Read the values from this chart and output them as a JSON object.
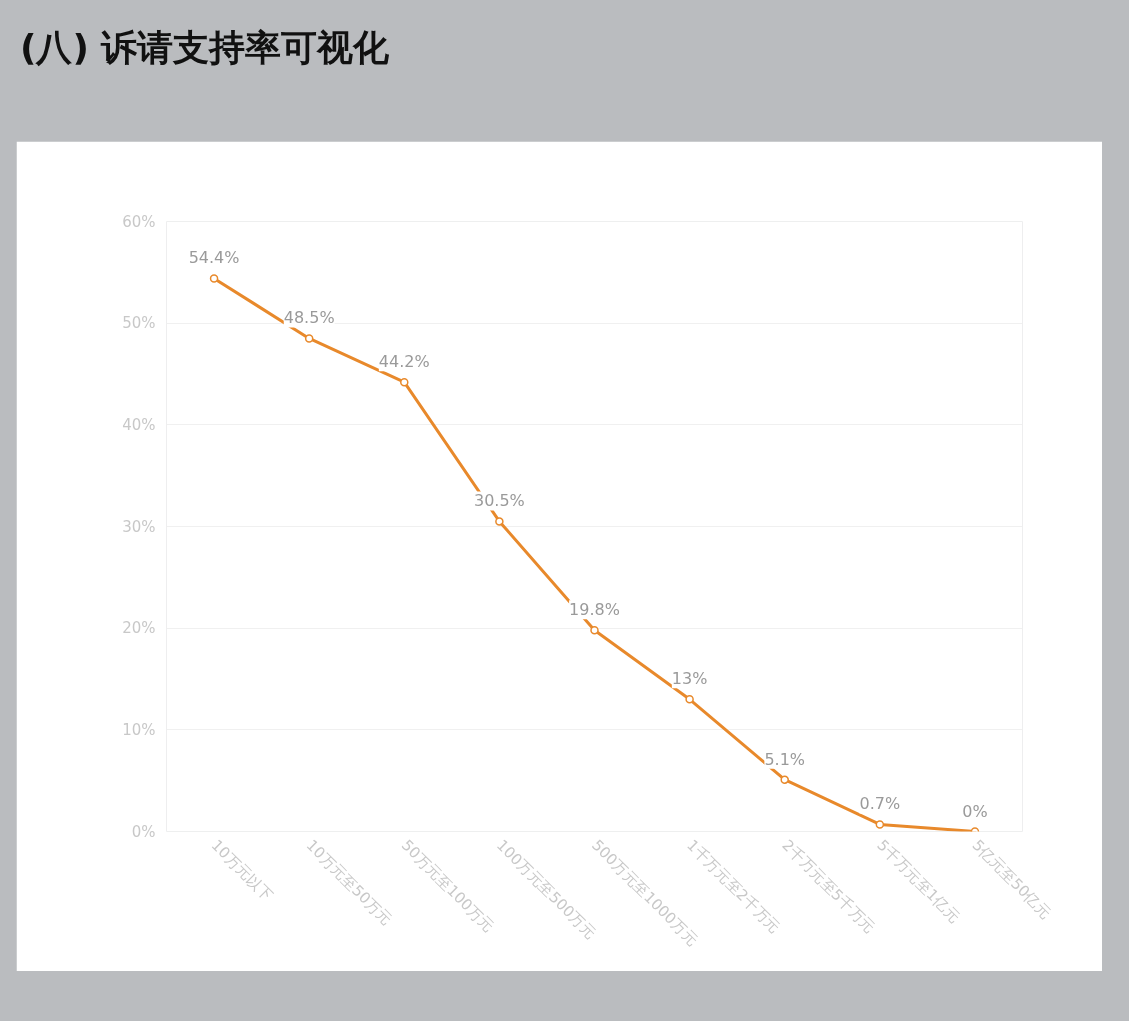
{
  "chart_data": {
    "type": "line",
    "title": "(八) 诉请支持率可视化",
    "categories": [
      "10万元以下",
      "10万元至50万元",
      "50万元至100万元",
      "100万元至500万元",
      "500万元至1000万元",
      "1千万元至2千万元",
      "2千万元至5千万元",
      "5千万元至1亿元",
      "5亿元至50亿元"
    ],
    "series": [
      {
        "color": "#e8892b",
        "values": [
          54.4,
          48.5,
          44.2,
          30.5,
          19.8,
          13,
          5.1,
          0.7,
          0
        ],
        "value_labels": [
          "54.4%",
          "48.5%",
          "44.2%",
          "30.5%",
          "19.8%",
          "13%",
          "5.1%",
          "0.7%",
          "0%"
        ]
      }
    ],
    "ylim": [
      0,
      60
    ],
    "yticks": [
      {
        "value": 0,
        "label": "0%"
      },
      {
        "value": 10,
        "label": "10%"
      },
      {
        "value": 20,
        "label": "20%"
      },
      {
        "value": 30,
        "label": "30%"
      },
      {
        "value": 40,
        "label": "40%"
      },
      {
        "value": 50,
        "label": "50%"
      },
      {
        "value": 60,
        "label": "60%"
      }
    ],
    "grid": "y",
    "marker": "circle",
    "line_style": "solid"
  }
}
